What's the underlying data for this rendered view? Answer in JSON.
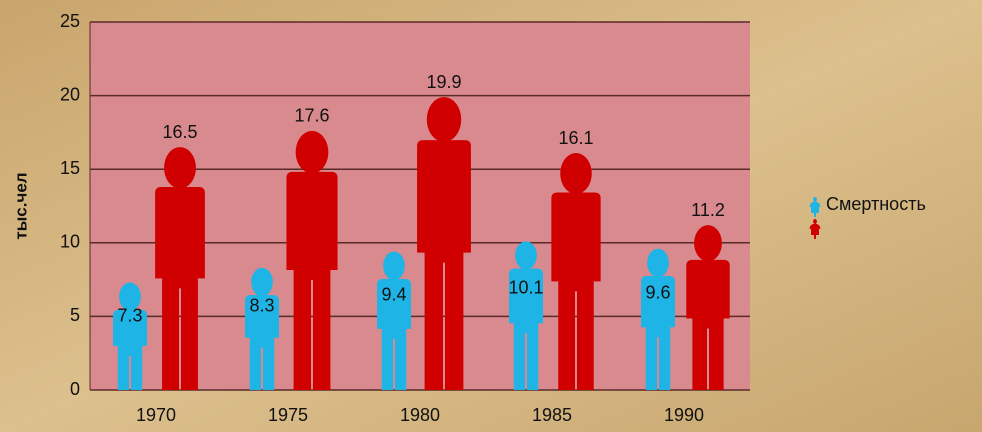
{
  "chart_data": {
    "type": "pictogram_bar",
    "y_label": "тыс.чел",
    "categories": [
      "1970",
      "1975",
      "1980",
      "1985",
      "1990"
    ],
    "series": [
      {
        "name": "Смертность",
        "color": "#1fb4e6",
        "values": [
          7.3,
          8.3,
          9.4,
          10.1,
          9.6
        ]
      },
      {
        "color": "#d10000",
        "values": [
          16.5,
          17.6,
          19.9,
          16.1,
          11.2
        ]
      }
    ],
    "ylim": [
      0,
      25
    ],
    "yticks": [
      0,
      5,
      10,
      15,
      20,
      25
    ],
    "grid": true,
    "legend": "right"
  }
}
